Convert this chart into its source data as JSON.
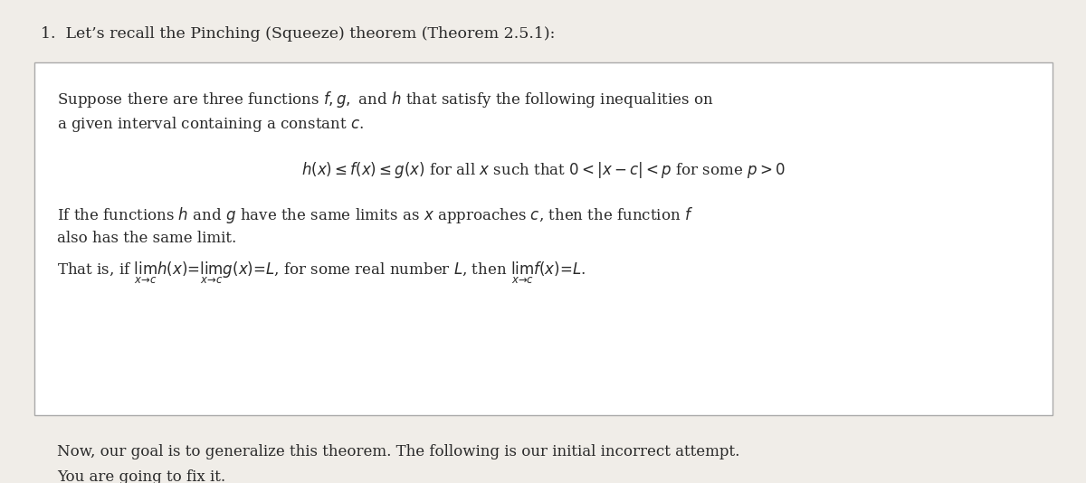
{
  "bg_color": "#f0ede8",
  "box_bg_color": "#ffffff",
  "text_color": "#2a2a2a",
  "fig_width": 12.0,
  "fig_height": 5.34,
  "title_text": "1.  Let’s recall the Pinching (Squeeze) theorem (Theorem 2.5.1):",
  "box_line1": "Suppose there are three functions $f, g,$ and $h$ that satisfy the following inequalities on",
  "box_line2": "a given interval containing a constant $c$.",
  "box_math": "$h(x) \\leq f(x) \\leq g(x)$ for all $x$ such that $0 < |x - c| < p$ for some $p > 0$",
  "box_line3": "If the functions $h$ and $g$ have the same limits as $x$ approaches $c$, then the function $f$",
  "box_line4": "also has the same limit.",
  "box_line5": "That is, if $\\lim_{x \\to c} h(x) = \\lim_{x \\to c} g(x) = L$, for some real number $L$, then $\\lim_{x \\to c} f(x) = L$.",
  "footer_line1": "Now, our goal is to generalize this theorem. The following is our initial incorrect attempt.",
  "footer_line2": "You are going to fix it.",
  "font_size_title": 12.5,
  "font_size_body": 12.0,
  "font_size_math": 12.0,
  "box_edge_color": "#aaaaaa"
}
